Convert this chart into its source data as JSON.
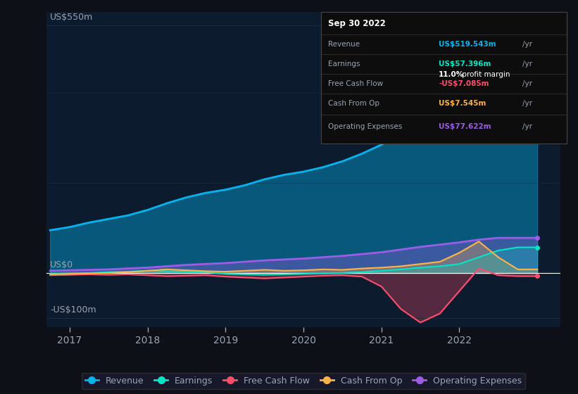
{
  "bg_color": "#0d1117",
  "plot_bg_color": "#0d1b2e",
  "grid_color": "#1e2d40",
  "text_color": "#9aa5b4",
  "title_color": "#ffffff",
  "ylim": [
    -120,
    580
  ],
  "xlim": [
    2016.7,
    2023.3
  ],
  "yticks": [
    -100,
    0,
    550
  ],
  "ytick_labels": [
    "-US$100m",
    "US$0",
    "US$550m"
  ],
  "xticks": [
    2017,
    2018,
    2019,
    2020,
    2021,
    2022
  ],
  "colors": {
    "revenue": "#00b4f0",
    "earnings": "#00e5c3",
    "free_cash_flow": "#ff4d6d",
    "cash_from_op": "#ffb347",
    "operating_expenses": "#9b5de5"
  },
  "tooltip": {
    "date": "Sep 30 2022",
    "revenue_val": "US$519.543m",
    "earnings_val": "US$57.396m",
    "profit_margin": "11.0%",
    "fcf_val": "-US$7.085m",
    "cash_from_op_val": "US$7.545m",
    "op_exp_val": "US$77.622m"
  },
  "legend_items": [
    {
      "label": "Revenue",
      "color": "#00b4f0"
    },
    {
      "label": "Earnings",
      "color": "#00e5c3"
    },
    {
      "label": "Free Cash Flow",
      "color": "#ff4d6d"
    },
    {
      "label": "Cash From Op",
      "color": "#ffb347"
    },
    {
      "label": "Operating Expenses",
      "color": "#9b5de5"
    }
  ],
  "x": [
    2016.75,
    2017.0,
    2017.25,
    2017.5,
    2017.75,
    2018.0,
    2018.25,
    2018.5,
    2018.75,
    2019.0,
    2019.25,
    2019.5,
    2019.75,
    2020.0,
    2020.25,
    2020.5,
    2020.75,
    2021.0,
    2021.25,
    2021.5,
    2021.75,
    2022.0,
    2022.25,
    2022.5,
    2022.75,
    2023.0
  ],
  "revenue": [
    95,
    102,
    112,
    120,
    128,
    140,
    155,
    168,
    178,
    185,
    195,
    208,
    218,
    225,
    235,
    248,
    265,
    285,
    310,
    345,
    385,
    420,
    455,
    490,
    519,
    519
  ],
  "earnings": [
    -2,
    -1,
    0,
    2,
    3,
    5,
    4,
    3,
    2,
    -2,
    -3,
    -4,
    -3,
    -2,
    -1,
    0,
    2,
    5,
    8,
    12,
    15,
    20,
    35,
    50,
    57,
    57
  ],
  "free_cash_flow": [
    -5,
    -4,
    -3,
    -4,
    -3,
    -5,
    -7,
    -6,
    -5,
    -8,
    -10,
    -12,
    -10,
    -8,
    -6,
    -5,
    -8,
    -30,
    -80,
    -110,
    -90,
    -40,
    10,
    -5,
    -7,
    -7
  ],
  "cash_from_op": [
    -3,
    -2,
    -1,
    0,
    2,
    5,
    8,
    6,
    4,
    3,
    5,
    7,
    5,
    6,
    8,
    7,
    10,
    12,
    15,
    20,
    25,
    45,
    70,
    35,
    8,
    8
  ],
  "operating_expenses": [
    5,
    6,
    7,
    8,
    10,
    12,
    15,
    18,
    20,
    22,
    25,
    28,
    30,
    32,
    35,
    38,
    42,
    46,
    52,
    58,
    63,
    68,
    74,
    78,
    78,
    78
  ]
}
